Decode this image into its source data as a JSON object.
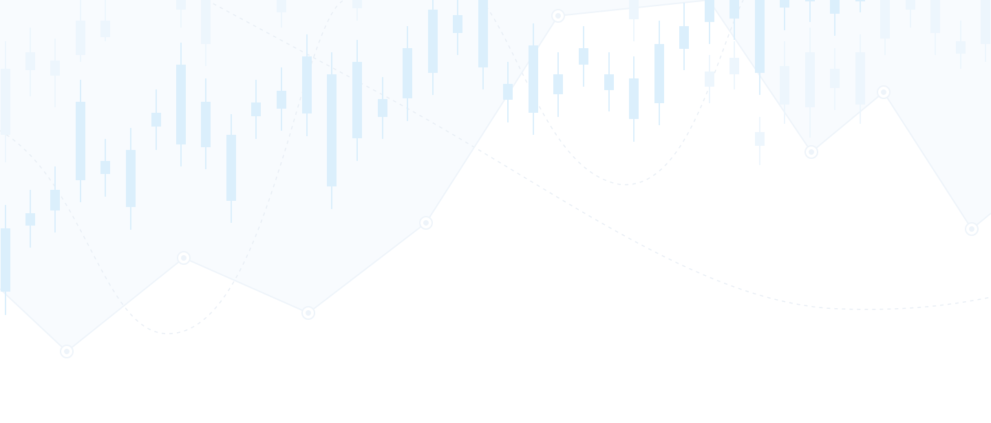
{
  "background": {
    "type": "decorative-candlestick-pattern",
    "colors": {
      "candle": "#dbeffc",
      "candle_faint": "#edf6fd",
      "line": "#eef4fa",
      "dash": "#e8eef5",
      "area": "#f5f9fd",
      "page": "#ffffff"
    }
  }
}
